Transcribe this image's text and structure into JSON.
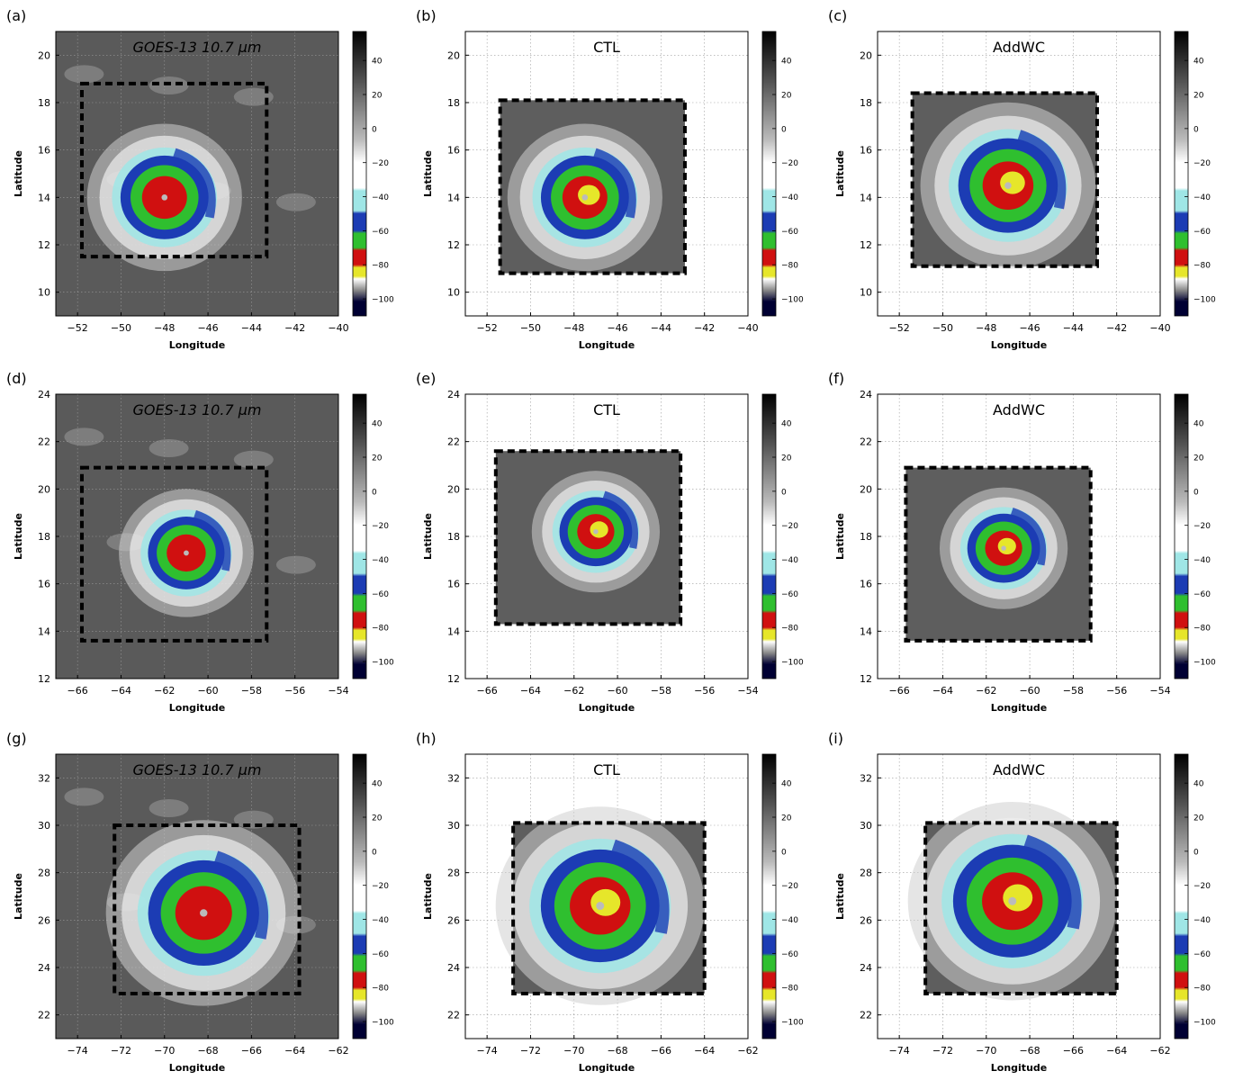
{
  "figure": {
    "axis_labels": {
      "x": "Longitude",
      "y": "Latitude"
    },
    "colorbar": {
      "ticks": [
        40,
        20,
        0,
        -20,
        -40,
        -60,
        -80,
        -100
      ],
      "min": -110,
      "max": 57,
      "colors": {
        "black": "#000000",
        "gray_light": "#dddddd",
        "cyan": "#9fe6e6",
        "blue": "#1c3cb4",
        "green": "#2fbf2f",
        "red": "#d01010",
        "yellow": "#e6e62a",
        "navy": "#000033"
      }
    },
    "panels": [
      {
        "id": "a",
        "label": "(a)",
        "title": "GOES-13 10.7 μm",
        "kind": "obs",
        "xticks": [
          -52,
          -50,
          -48,
          -46,
          -44,
          -42,
          -40
        ],
        "yticks": [
          10,
          12,
          14,
          16,
          18,
          20
        ],
        "xlim": [
          -53,
          -40
        ],
        "ylim": [
          9,
          21
        ],
        "box": {
          "x": [
            -51.8,
            -43.3
          ],
          "y": [
            11.5,
            18.8
          ]
        },
        "storm": {
          "lon": -48.0,
          "lat": 14.0,
          "radius": 2.3
        }
      },
      {
        "id": "b",
        "label": "(b)",
        "title": "CTL",
        "kind": "model",
        "xticks": [
          -52,
          -50,
          -48,
          -46,
          -44,
          -42,
          -40
        ],
        "yticks": [
          10,
          12,
          14,
          16,
          18,
          20
        ],
        "xlim": [
          -53,
          -40
        ],
        "ylim": [
          9,
          21
        ],
        "box": {
          "x": [
            -51.4,
            -42.9
          ],
          "y": [
            10.8,
            18.1
          ]
        },
        "storm": {
          "lon": -47.5,
          "lat": 14.0,
          "radius": 2.3
        }
      },
      {
        "id": "c",
        "label": "(c)",
        "title": "AddWC",
        "kind": "model",
        "xticks": [
          -52,
          -50,
          -48,
          -46,
          -44,
          -42,
          -40
        ],
        "yticks": [
          10,
          12,
          14,
          16,
          18,
          20
        ],
        "xlim": [
          -53,
          -40
        ],
        "ylim": [
          9,
          21
        ],
        "box": {
          "x": [
            -51.4,
            -42.9
          ],
          "y": [
            11.1,
            18.4
          ]
        },
        "storm": {
          "lon": -47.0,
          "lat": 14.5,
          "radius": 2.6
        }
      },
      {
        "id": "d",
        "label": "(d)",
        "title": "GOES-13 10.7 μm",
        "kind": "obs",
        "xticks": [
          -66,
          -64,
          -62,
          -60,
          -58,
          -56,
          -54
        ],
        "yticks": [
          12,
          14,
          16,
          18,
          20,
          22,
          24
        ],
        "xlim": [
          -67,
          -54
        ],
        "ylim": [
          12,
          24
        ],
        "box": {
          "x": [
            -65.8,
            -57.3
          ],
          "y": [
            13.6,
            20.9
          ]
        },
        "storm": {
          "lon": -61.0,
          "lat": 17.3,
          "radius": 2.0
        }
      },
      {
        "id": "e",
        "label": "(e)",
        "title": "CTL",
        "kind": "model",
        "xticks": [
          -66,
          -64,
          -62,
          -60,
          -58,
          -56,
          -54
        ],
        "yticks": [
          12,
          14,
          16,
          18,
          20,
          22,
          24
        ],
        "xlim": [
          -67,
          -54
        ],
        "ylim": [
          12,
          24
        ],
        "box": {
          "x": [
            -65.6,
            -57.1
          ],
          "y": [
            14.3,
            21.6
          ]
        },
        "storm": {
          "lon": -61.0,
          "lat": 18.2,
          "radius": 1.9
        }
      },
      {
        "id": "f",
        "label": "(f)",
        "title": "AddWC",
        "kind": "model",
        "xticks": [
          -66,
          -64,
          -62,
          -60,
          -58,
          -56,
          -54
        ],
        "yticks": [
          12,
          14,
          16,
          18,
          20,
          22,
          24
        ],
        "xlim": [
          -67,
          -54
        ],
        "ylim": [
          12,
          24
        ],
        "box": {
          "x": [
            -65.7,
            -57.2
          ],
          "y": [
            13.6,
            20.9
          ]
        },
        "storm": {
          "lon": -61.2,
          "lat": 17.5,
          "radius": 1.9
        }
      },
      {
        "id": "g",
        "label": "(g)",
        "title": "GOES-13 10.7 μm",
        "kind": "obs",
        "xticks": [
          -74,
          -72,
          -70,
          -68,
          -66,
          -64,
          -62
        ],
        "yticks": [
          22,
          24,
          26,
          28,
          30,
          32
        ],
        "xlim": [
          -75,
          -62
        ],
        "ylim": [
          21,
          33
        ],
        "box": {
          "x": [
            -72.3,
            -63.8
          ],
          "y": [
            22.9,
            30.0
          ]
        },
        "storm": {
          "lon": -68.2,
          "lat": 26.3,
          "radius": 2.9
        }
      },
      {
        "id": "h",
        "label": "(h)",
        "title": "CTL",
        "kind": "model",
        "xticks": [
          -74,
          -72,
          -70,
          -68,
          -66,
          -64,
          -62
        ],
        "yticks": [
          22,
          24,
          26,
          28,
          30,
          32
        ],
        "xlim": [
          -75,
          -62
        ],
        "ylim": [
          21,
          33
        ],
        "box": {
          "x": [
            -72.8,
            -64.0
          ],
          "y": [
            22.9,
            30.1
          ]
        },
        "storm": {
          "lon": -68.8,
          "lat": 26.6,
          "radius": 3.1
        }
      },
      {
        "id": "i",
        "label": "(i)",
        "title": "AddWC",
        "kind": "model",
        "xticks": [
          -74,
          -72,
          -70,
          -68,
          -66,
          -64,
          -62
        ],
        "yticks": [
          22,
          24,
          26,
          28,
          30,
          32
        ],
        "xlim": [
          -75,
          -62
        ],
        "ylim": [
          21,
          33
        ],
        "box": {
          "x": [
            -72.8,
            -64.0
          ],
          "y": [
            22.9,
            30.1
          ]
        },
        "storm": {
          "lon": -68.8,
          "lat": 26.8,
          "radius": 3.1
        }
      }
    ]
  }
}
